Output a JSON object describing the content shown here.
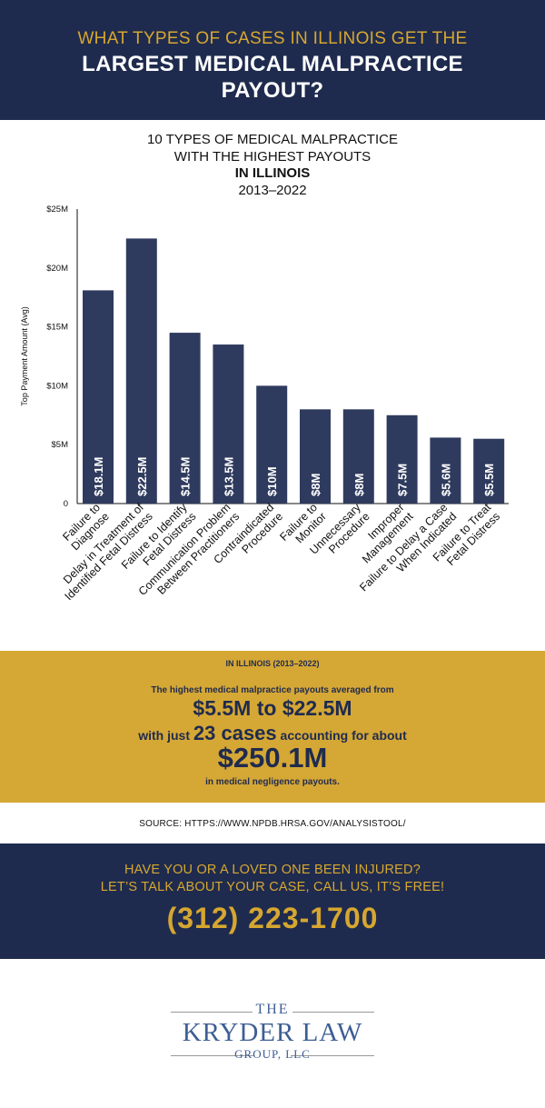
{
  "header": {
    "pretitle": "WHAT TYPES OF CASES IN ILLINOIS GET THE",
    "title": "LARGEST MEDICAL MALPRACTICE PAYOUT?"
  },
  "chart_data": {
    "type": "bar",
    "title_lines": [
      "10 TYPES OF MEDICAL MALPRACTICE",
      "WITH THE HIGHEST PAYOUTS"
    ],
    "subtitle": "IN ILLINOIS",
    "period": "2013–2022",
    "ylabel": "Top Payment Amount (Avg)",
    "xlabel": "",
    "ylim": [
      0,
      25
    ],
    "yticks": [
      0,
      5,
      10,
      15,
      20,
      25
    ],
    "ytick_labels": [
      "0",
      "$5M",
      "$10M",
      "$15M",
      "$20M",
      "$25M"
    ],
    "bar_color": "#2f3b5e",
    "categories": [
      [
        "Failure to",
        "Diagnose"
      ],
      [
        "Delay in Treatment of",
        "Identified Fetal Distress"
      ],
      [
        "Failure to Identify",
        "Fetal Distress"
      ],
      [
        "Communication Problem",
        "Between Practitioners"
      ],
      [
        "Contraindicated",
        "Procedure"
      ],
      [
        "Failure to",
        "Monitor"
      ],
      [
        "Unnecessary",
        "Procedure"
      ],
      [
        "Improper",
        "Management"
      ],
      [
        "Failure to Delay a Case",
        "When Indicated"
      ],
      [
        "Failure to Treat",
        "Fetal Distress"
      ]
    ],
    "values": [
      18.1,
      22.5,
      14.5,
      13.5,
      10,
      8,
      8,
      7.5,
      5.6,
      5.5
    ],
    "data_labels": [
      "$18.1M",
      "$22.5M",
      "$14.5M",
      "$13.5M",
      "$10M",
      "$8M",
      "$8M",
      "$7.5M",
      "$5.6M",
      "$5.5M"
    ]
  },
  "summary": {
    "heading": "IN ILLINOIS (2013–2022)",
    "line1": "The highest medical malpractice payouts averaged from",
    "range": "$5.5M to $22.5M",
    "line2_pre": "with just",
    "cases": "23 cases",
    "line2_post": "accounting for about",
    "total": "$250.1M",
    "line3": "in medical negligence payouts."
  },
  "source": "SOURCE: HTTPS://WWW.NPDB.HRSA.GOV/ANALYSISTOOL/",
  "cta": {
    "line1": "HAVE YOU OR A LOVED ONE BEEN INJURED?",
    "line2": "LET’S TALK ABOUT YOUR CASE, CALL US, IT’S FREE!",
    "phone": "(312) 223-1700"
  },
  "logo": {
    "the": "THE",
    "name": "KRYDER LAW",
    "group": "GROUP, LLC"
  },
  "colors": {
    "navy": "#1f2b4e",
    "gold": "#d6a730",
    "logo_blue": "#3e5e94"
  }
}
